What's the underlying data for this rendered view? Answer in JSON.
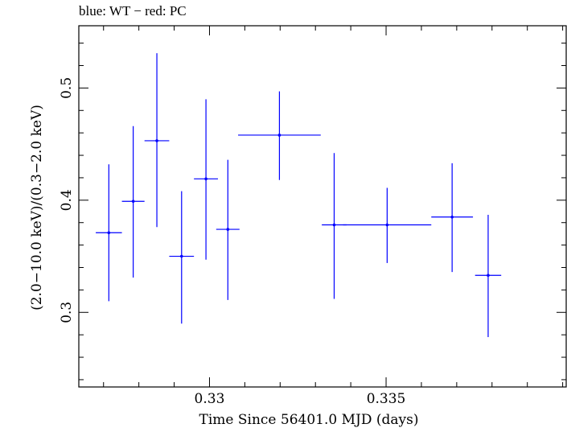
{
  "chart_data": {
    "type": "scatter",
    "title": "blue: WT − red: PC",
    "xlabel": "Time Since 56401.0 MJD (days)",
    "ylabel": "(2.0−10.0 keV)/(0.3−2.0 keV)",
    "xlim": [
      0.3263,
      0.3401
    ],
    "ylim": [
      0.2335,
      0.5555
    ],
    "x_ticks": [
      0.33,
      0.335
    ],
    "x_tick_labels": [
      "0.33",
      "0.335"
    ],
    "y_ticks": [
      0.3,
      0.4,
      0.5
    ],
    "y_tick_labels": [
      "0.3",
      "0.4",
      "0.5"
    ],
    "grid": false,
    "series": [
      {
        "color": "#0000ff",
        "points": [
          {
            "x": 0.32715,
            "xerr": 0.00037,
            "y": 0.371,
            "ylo": 0.31,
            "yhi": 0.432
          },
          {
            "x": 0.32784,
            "xerr": 0.00032,
            "y": 0.399,
            "ylo": 0.331,
            "yhi": 0.466
          },
          {
            "x": 0.32851,
            "xerr": 0.00035,
            "y": 0.453,
            "ylo": 0.376,
            "yhi": 0.531
          },
          {
            "x": 0.32921,
            "xerr": 0.00035,
            "y": 0.35,
            "ylo": 0.29,
            "yhi": 0.408
          },
          {
            "x": 0.3299,
            "xerr": 0.00034,
            "y": 0.419,
            "ylo": 0.347,
            "yhi": 0.49
          },
          {
            "x": 0.33052,
            "xerr": 0.00033,
            "y": 0.374,
            "ylo": 0.311,
            "yhi": 0.436
          },
          {
            "x": 0.33198,
            "xerr": 0.00117,
            "y": 0.458,
            "ylo": 0.418,
            "yhi": 0.497
          },
          {
            "x": 0.33353,
            "xerr": 0.00035,
            "y": 0.378,
            "ylo": 0.312,
            "yhi": 0.442
          },
          {
            "x": 0.33503,
            "xerr": 0.00125,
            "y": 0.378,
            "ylo": 0.344,
            "yhi": 0.411
          },
          {
            "x": 0.33687,
            "xerr": 0.00059,
            "y": 0.385,
            "ylo": 0.336,
            "yhi": 0.433
          },
          {
            "x": 0.33789,
            "xerr": 0.00037,
            "y": 0.333,
            "ylo": 0.278,
            "yhi": 0.387
          }
        ]
      }
    ]
  }
}
